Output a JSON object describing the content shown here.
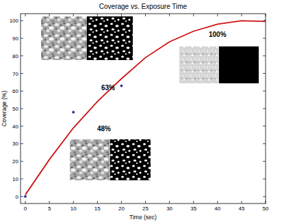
{
  "chart_data": {
    "type": "scatter",
    "title": "Coverage vs. Exposure Time",
    "x_label": "Time (sec)",
    "y_label": "Coverage (%)",
    "series": [
      {
        "type": "scatter",
        "color": "#2b2b9a",
        "marker": "circle",
        "x": [
          0,
          10,
          20,
          50
        ],
        "values": [
          0,
          48,
          63,
          100
        ]
      },
      {
        "type": "line",
        "color": "#cc1111",
        "line_style": "solid",
        "x": [
          0,
          5,
          10,
          15,
          20,
          25,
          30,
          35,
          40,
          45,
          50
        ],
        "values": [
          1,
          21,
          39,
          54,
          67,
          79,
          88,
          94,
          98,
          100,
          99.6
        ]
      }
    ],
    "annotations": [
      "63%",
      "48%",
      "100%"
    ],
    "xlim": [
      -1,
      50
    ],
    "ylim": [
      -4,
      104
    ],
    "xticks": [
      0,
      5,
      10,
      15,
      20,
      25,
      30,
      35,
      40,
      45,
      50
    ],
    "yticks": [
      0,
      10,
      20,
      30,
      40,
      50,
      60,
      70,
      80,
      90,
      100
    ],
    "grid": false
  }
}
